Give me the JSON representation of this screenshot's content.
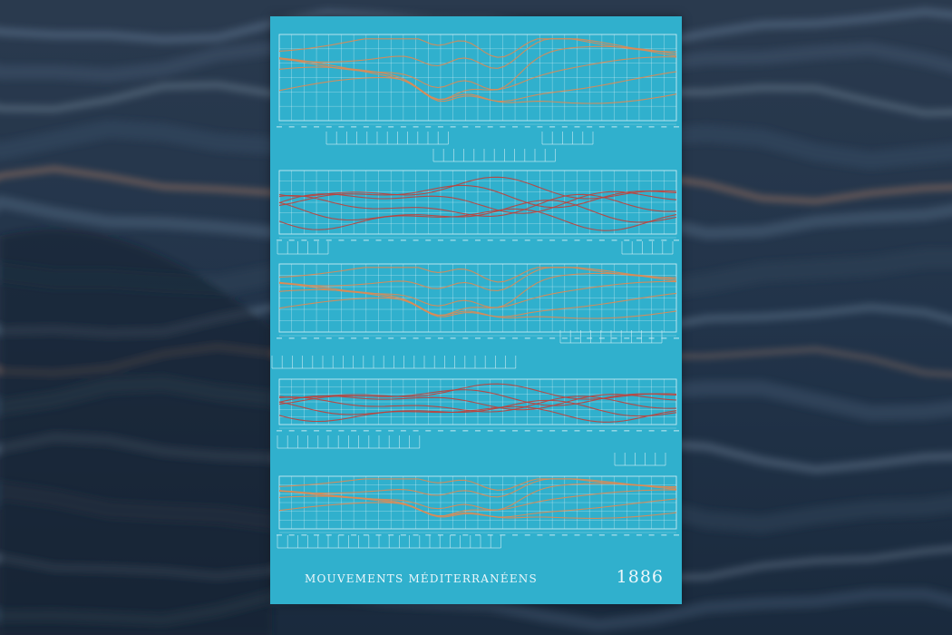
{
  "background": {
    "description_colors": {
      "deep": "#1a2838",
      "mid": "#3d5670",
      "highlight": "#d9a37a"
    }
  },
  "poster": {
    "title": "MOUVEMENTS MÉDITERRANÉENS",
    "year": "1886",
    "colors": {
      "paper": "#30b0cd",
      "grid": "#dff3f8",
      "orange": "#e08a52",
      "red": "#c0403a",
      "text": "#ecf7fb"
    }
  }
}
